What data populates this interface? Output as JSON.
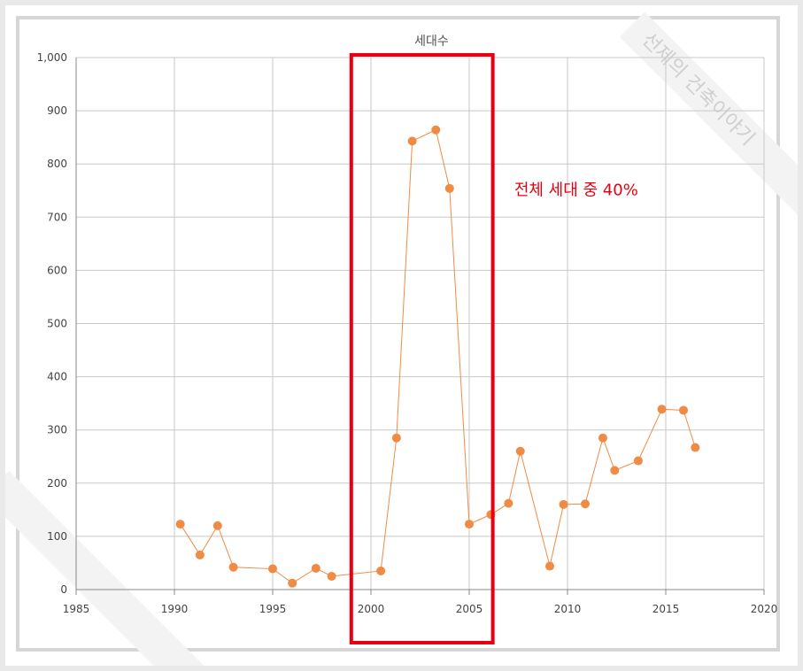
{
  "chart_data": {
    "type": "line",
    "title": "세대수",
    "xlim": [
      1985,
      2020
    ],
    "ylim": [
      0,
      1000
    ],
    "x_ticks": [
      "1985",
      "1990",
      "1995",
      "2000",
      "2005",
      "2010",
      "2015",
      "2020"
    ],
    "y_ticks": [
      "0",
      "100",
      "200",
      "300",
      "400",
      "500",
      "600",
      "700",
      "800",
      "900",
      "1,000"
    ],
    "grid": true,
    "series": [
      {
        "color": "#f08b45",
        "points": [
          {
            "x": 1990.3,
            "y": 123
          },
          {
            "x": 1991.3,
            "y": 65
          },
          {
            "x": 1992.2,
            "y": 120
          },
          {
            "x": 1993.0,
            "y": 42
          },
          {
            "x": 1995.0,
            "y": 39
          },
          {
            "x": 1996.0,
            "y": 12
          },
          {
            "x": 1997.2,
            "y": 40
          },
          {
            "x": 1998.0,
            "y": 25
          },
          {
            "x": 2000.5,
            "y": 35
          },
          {
            "x": 2001.3,
            "y": 285
          },
          {
            "x": 2002.1,
            "y": 843
          },
          {
            "x": 2003.3,
            "y": 864
          },
          {
            "x": 2004.0,
            "y": 754
          },
          {
            "x": 2005.0,
            "y": 123
          },
          {
            "x": 2006.1,
            "y": 141
          },
          {
            "x": 2007.0,
            "y": 162
          },
          {
            "x": 2007.6,
            "y": 260
          },
          {
            "x": 2009.1,
            "y": 44
          },
          {
            "x": 2009.8,
            "y": 160
          },
          {
            "x": 2010.9,
            "y": 161
          },
          {
            "x": 2011.8,
            "y": 285
          },
          {
            "x": 2012.4,
            "y": 224
          },
          {
            "x": 2013.6,
            "y": 242
          },
          {
            "x": 2014.8,
            "y": 339
          },
          {
            "x": 2015.9,
            "y": 337
          },
          {
            "x": 2016.5,
            "y": 267
          }
        ]
      }
    ],
    "highlight": {
      "x_start": 1999.0,
      "x_end": 2006.2,
      "color": "#e60012"
    },
    "annotation": {
      "text": "전체 세대 중 40%",
      "x": 2007.2,
      "y": 750
    }
  },
  "watermark": {
    "text": "선제의 건축이야기"
  }
}
